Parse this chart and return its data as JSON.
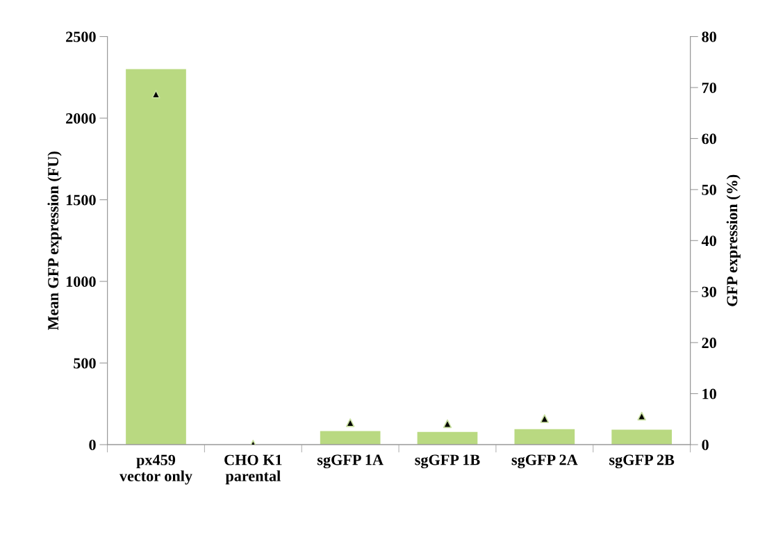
{
  "chart_data": {
    "type": "bar",
    "categories": [
      "px459\nvector only",
      "CHO K1\nparental",
      "sgGFP 1A",
      "sgGFP 1B",
      "sgGFP 2A",
      "sgGFP 2B"
    ],
    "ylabel": "Mean GFP expression (FU)",
    "y2label": "GFP expression (%)",
    "ylim": [
      0,
      2500
    ],
    "yticks": [
      0,
      500,
      1000,
      1500,
      2000,
      2500
    ],
    "y2lim": [
      0,
      80
    ],
    "y2ticks": [
      0,
      10,
      20,
      30,
      40,
      50,
      60,
      70,
      80
    ],
    "grid": false,
    "legend": false,
    "series": [
      {
        "color": "#b9d981",
        "values": [
          2300,
          0,
          83,
          78,
          95,
          92
        ]
      },
      {
        "type": "scatter",
        "axis": "y2",
        "color": "#000000",
        "marker": "triangle",
        "values": [
          68.7,
          0.1,
          4.3,
          4.1,
          5.1,
          5.6
        ]
      }
    ]
  }
}
